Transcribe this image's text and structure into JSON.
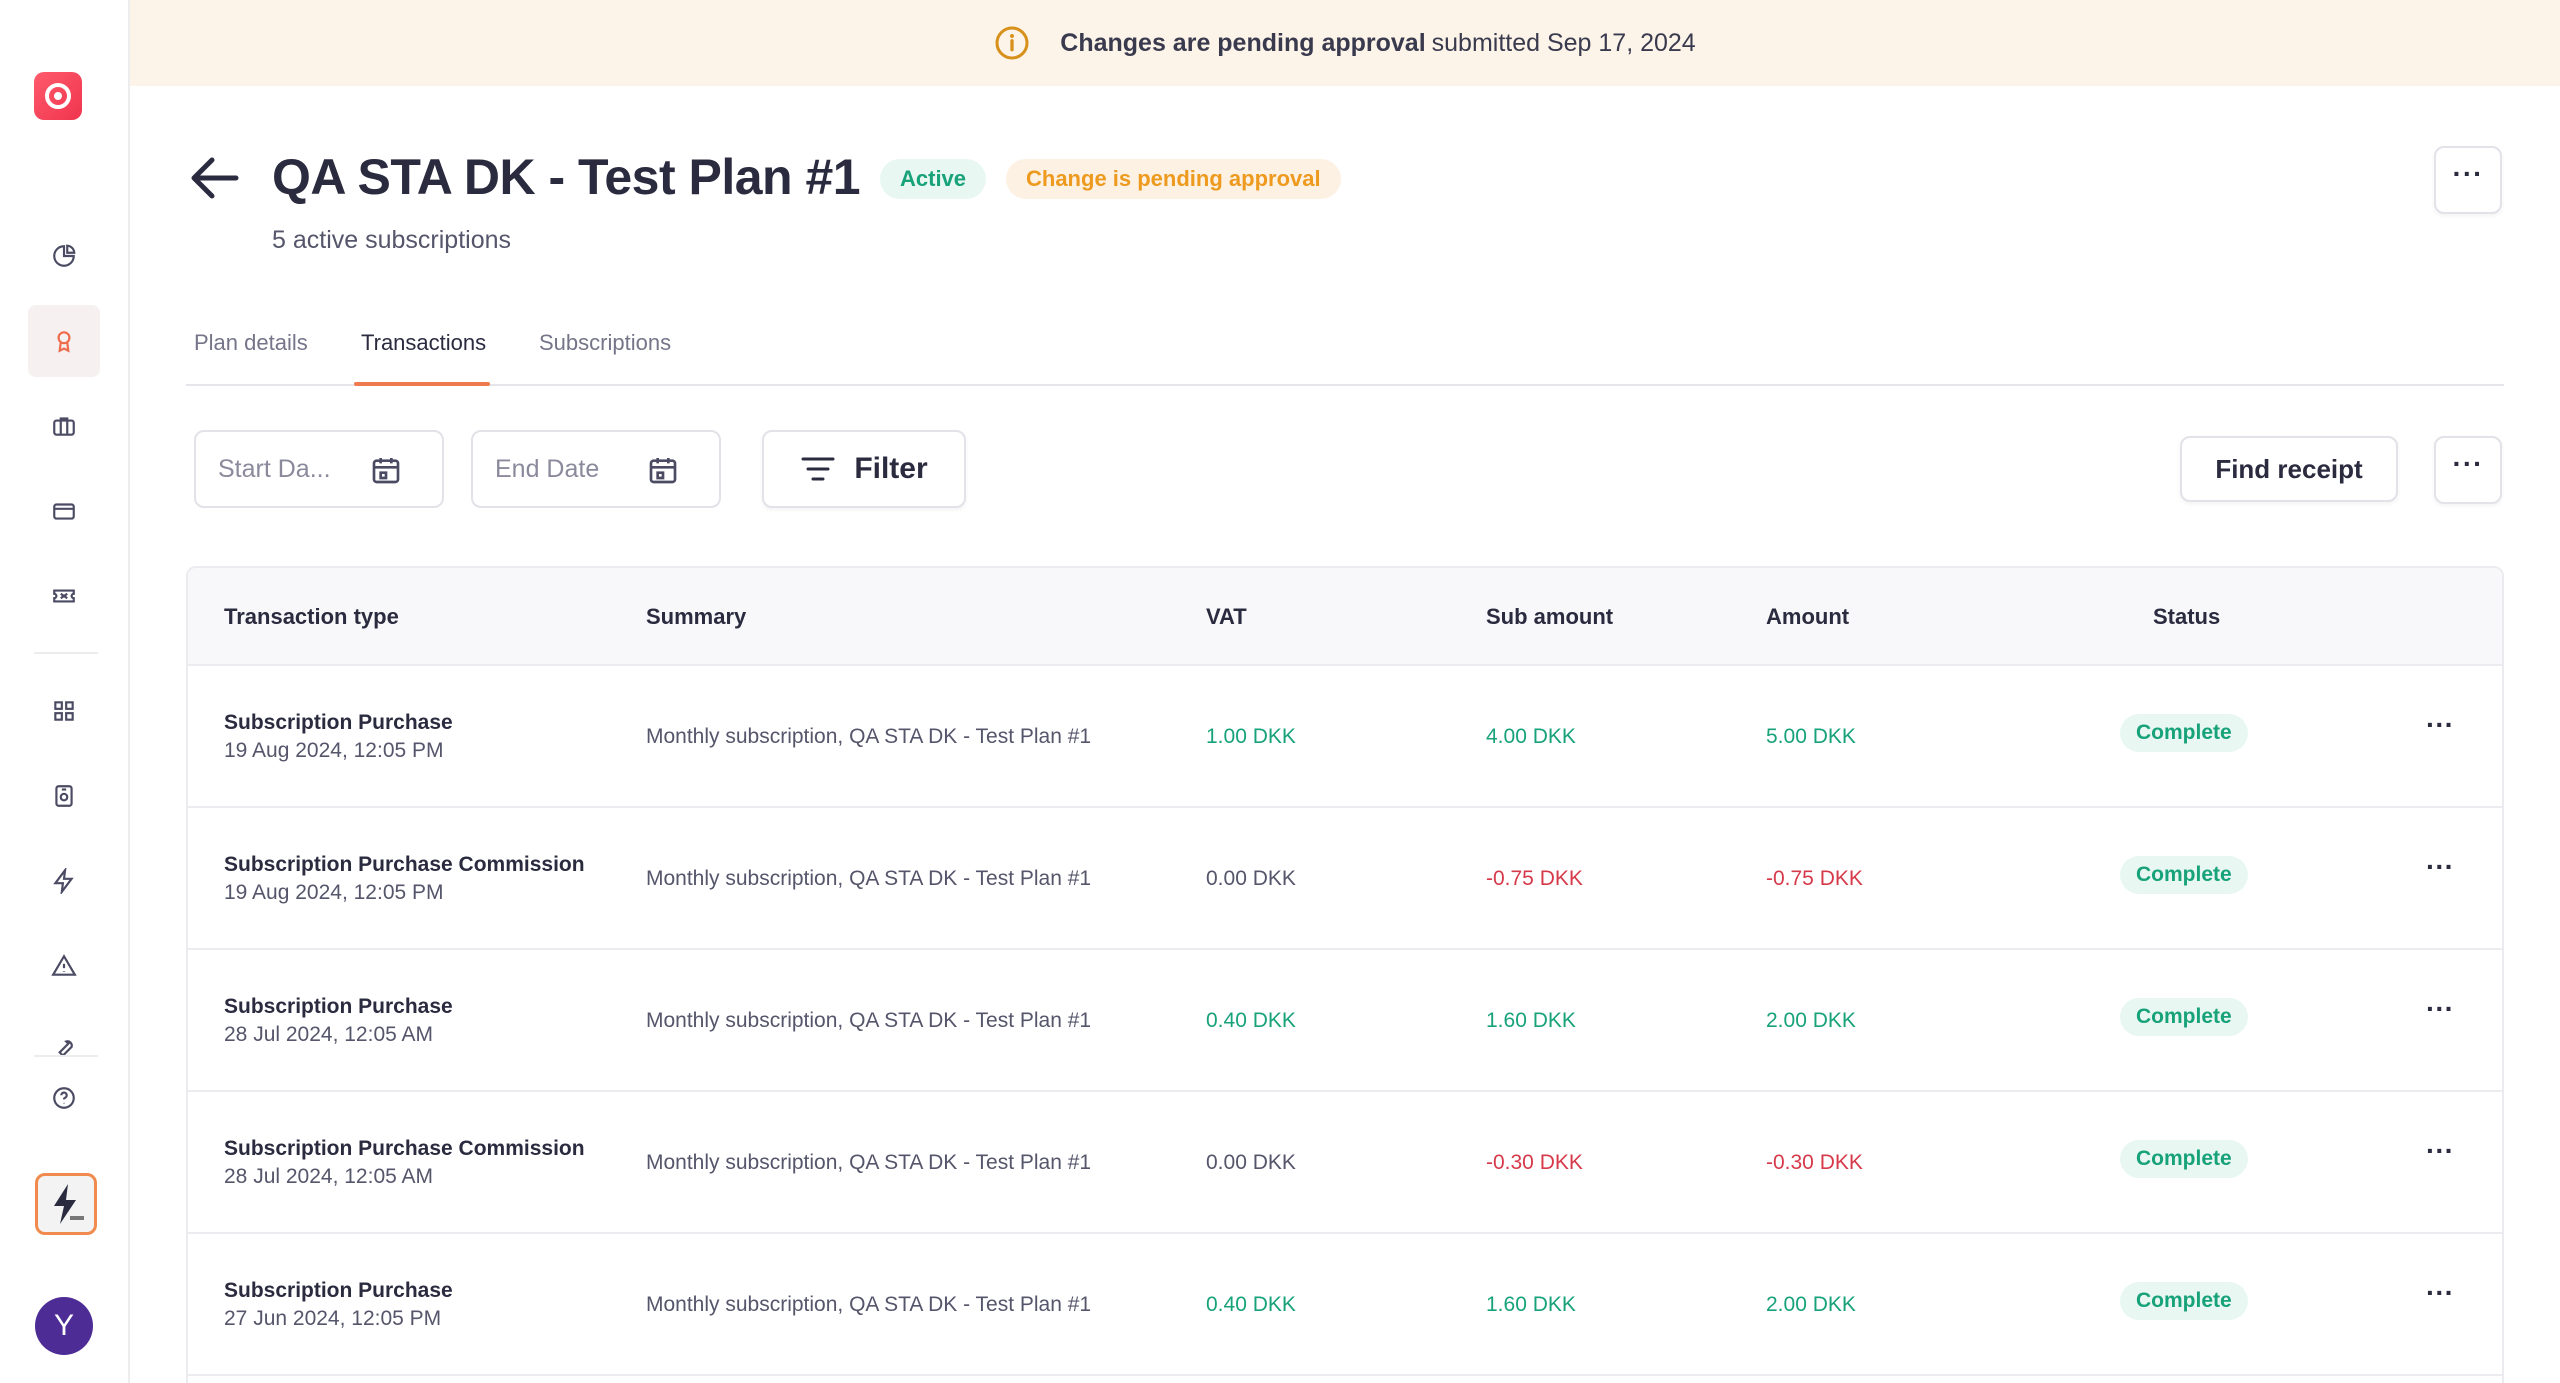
{
  "banner": {
    "icon": "info-icon",
    "bold_text": "Changes are pending approval",
    "text": "submitted Sep 17, 2024"
  },
  "sidebar": {
    "items": [
      {
        "icon": "pie-chart-icon",
        "active": false
      },
      {
        "icon": "award-icon",
        "active": true
      },
      {
        "icon": "briefcase-icon",
        "active": false
      },
      {
        "icon": "credit-card-icon",
        "active": false
      },
      {
        "icon": "ticket-icon",
        "active": false
      },
      {
        "icon": "grid-icon",
        "active": false
      },
      {
        "icon": "device-icon",
        "active": false
      },
      {
        "icon": "lightning-icon",
        "active": false
      },
      {
        "icon": "warning-icon",
        "active": false
      },
      {
        "icon": "tool-icon",
        "active": false
      },
      {
        "icon": "help-icon",
        "active": false
      }
    ],
    "avatar_initial": "Y"
  },
  "header": {
    "title": "QA STA DK - Test Plan #1",
    "status_badge": "Active",
    "pending_badge": "Change is pending approval",
    "subtitle": "5 active subscriptions",
    "more_label": "···"
  },
  "tabs": [
    {
      "label": "Plan details",
      "active": false
    },
    {
      "label": "Transactions",
      "active": true
    },
    {
      "label": "Subscriptions",
      "active": false
    }
  ],
  "toolbar": {
    "start_date_placeholder": "Start Da...",
    "end_date_placeholder": "End Date",
    "filter_label": "Filter",
    "find_receipt_label": "Find receipt",
    "more_label": "···"
  },
  "table": {
    "columns": [
      "Transaction type",
      "Summary",
      "VAT",
      "Sub amount",
      "Amount",
      "Status"
    ],
    "rows": [
      {
        "type": "Subscription Purchase",
        "date": "19 Aug 2024, 12:05 PM",
        "summary": "Monthly subscription, QA STA DK - Test Plan #1",
        "vat": "1.00 DKK",
        "sub_amount": "4.00 DKK",
        "amount": "5.00 DKK",
        "status": "Complete",
        "more": "···"
      },
      {
        "type": "Subscription Purchase Commission",
        "date": "19 Aug 2024, 12:05 PM",
        "summary": "Monthly subscription, QA STA DK - Test Plan #1",
        "vat": "0.00 DKK",
        "sub_amount": "-0.75 DKK",
        "amount": "-0.75 DKK",
        "status": "Complete",
        "more": "···"
      },
      {
        "type": "Subscription Purchase",
        "date": "28 Jul 2024, 12:05 AM",
        "summary": "Monthly subscription, QA STA DK - Test Plan #1",
        "vat": "0.40 DKK",
        "sub_amount": "1.60 DKK",
        "amount": "2.00 DKK",
        "status": "Complete",
        "more": "···"
      },
      {
        "type": "Subscription Purchase Commission",
        "date": "28 Jul 2024, 12:05 AM",
        "summary": "Monthly subscription, QA STA DK - Test Plan #1",
        "vat": "0.00 DKK",
        "sub_amount": "-0.30 DKK",
        "amount": "-0.30 DKK",
        "status": "Complete",
        "more": "···"
      },
      {
        "type": "Subscription Purchase",
        "date": "27 Jun 2024, 12:05 PM",
        "summary": "Monthly subscription, QA STA DK - Test Plan #1",
        "vat": "0.40 DKK",
        "sub_amount": "1.60 DKK",
        "amount": "2.00 DKK",
        "status": "Complete",
        "more": "···"
      }
    ]
  },
  "colors": {
    "positive": "#18a27a",
    "negative": "#d63a4a",
    "neutral": "#55556b",
    "accent": "#ef7a50",
    "pending": "#ed9a1f"
  }
}
